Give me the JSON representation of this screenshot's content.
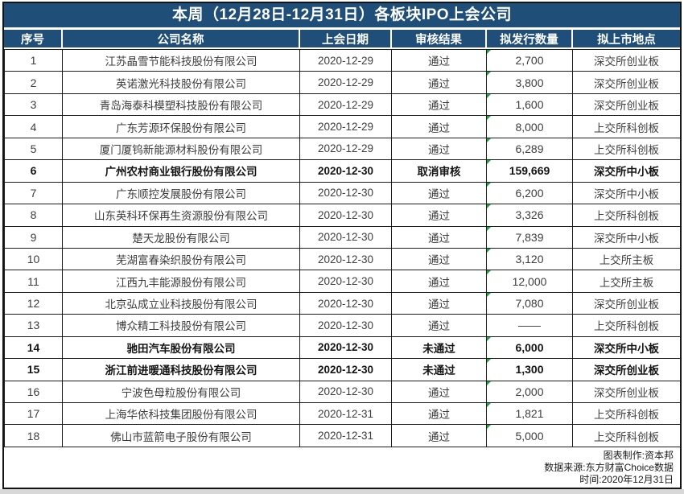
{
  "chart_data": {
    "type": "table",
    "title": "本周（12月28日-12月31日）各板块IPO上会公司",
    "columns": [
      "序号",
      "公司名称",
      "上会日期",
      "审核结果",
      "拟发行数量",
      "拟上市地点"
    ],
    "rows": [
      {
        "no": "1",
        "company": "江苏晶雪节能科技股份有限公司",
        "date": "2020-12-29",
        "result": "通过",
        "quantity": "2,700",
        "location": "深交所创业板",
        "bold": false,
        "flag": true
      },
      {
        "no": "2",
        "company": "英诺激光科技股份有限公司",
        "date": "2020-12-29",
        "result": "通过",
        "quantity": "3,800",
        "location": "深交所创业板",
        "bold": false,
        "flag": true
      },
      {
        "no": "3",
        "company": "青岛海泰科模塑科技股份有限公司",
        "date": "2020-12-29",
        "result": "通过",
        "quantity": "1,600",
        "location": "深交所创业板",
        "bold": false,
        "flag": true
      },
      {
        "no": "4",
        "company": "广东芳源环保股份有限公司",
        "date": "2020-12-29",
        "result": "通过",
        "quantity": "8,000",
        "location": "上交所科创板",
        "bold": false,
        "flag": true
      },
      {
        "no": "5",
        "company": "厦门厦钨新能源材料股份有限公司",
        "date": "2020-12-29",
        "result": "通过",
        "quantity": "6,289",
        "location": "上交所科创板",
        "bold": false,
        "flag": true
      },
      {
        "no": "6",
        "company": "广州农村商业银行股份有限公司",
        "date": "2020-12-30",
        "result": "取消审核",
        "quantity": "159,669",
        "location": "深交所中小板",
        "bold": true,
        "flag": true
      },
      {
        "no": "7",
        "company": "广东顺控发展股份有限公司",
        "date": "2020-12-30",
        "result": "通过",
        "quantity": "6,200",
        "location": "深交所中小板",
        "bold": false,
        "flag": true
      },
      {
        "no": "8",
        "company": "山东英科环保再生资源股份有限公司",
        "date": "2020-12-30",
        "result": "通过",
        "quantity": "3,326",
        "location": "上交所科创板",
        "bold": false,
        "flag": true
      },
      {
        "no": "9",
        "company": "楚天龙股份有限公司",
        "date": "2020-12-30",
        "result": "通过",
        "quantity": "7,839",
        "location": "深交所中小板",
        "bold": false,
        "flag": true
      },
      {
        "no": "10",
        "company": "芜湖富春染织股份有限公司",
        "date": "2020-12-30",
        "result": "通过",
        "quantity": "3,120",
        "location": "上交所主板",
        "bold": false,
        "flag": true
      },
      {
        "no": "11",
        "company": "江西九丰能源股份有限公司",
        "date": "2020-12-30",
        "result": "通过",
        "quantity": "12,000",
        "location": "上交所主板",
        "bold": false,
        "flag": true
      },
      {
        "no": "12",
        "company": "北京弘成立业科技股份有限公司",
        "date": "2020-12-30",
        "result": "通过",
        "quantity": "7,080",
        "location": "深交所创业板",
        "bold": false,
        "flag": true
      },
      {
        "no": "13",
        "company": "博众精工科技股份有限公司",
        "date": "2020-12-30",
        "result": "通过",
        "quantity": "——",
        "location": "上交所科创板",
        "bold": false,
        "flag": false
      },
      {
        "no": "14",
        "company": "驰田汽车股份有限公司",
        "date": "2020-12-30",
        "result": "未通过",
        "quantity": "6,000",
        "location": "深交所中小板",
        "bold": true,
        "flag": true
      },
      {
        "no": "15",
        "company": "浙江前进暖通科技股份有限公司",
        "date": "2020-12-30",
        "result": "未通过",
        "quantity": "1,300",
        "location": "深交所创业板",
        "bold": true,
        "flag": true
      },
      {
        "no": "16",
        "company": "宁波色母粒股份有限公司",
        "date": "2020-12-30",
        "result": "通过",
        "quantity": "2,000",
        "location": "深交所创业板",
        "bold": false,
        "flag": true
      },
      {
        "no": "17",
        "company": "上海华依科技集团股份有限公司",
        "date": "2020-12-31",
        "result": "通过",
        "quantity": "1,821",
        "location": "上交所科创板",
        "bold": false,
        "flag": true
      },
      {
        "no": "18",
        "company": "佛山市蓝箭电子股份有限公司",
        "date": "2020-12-31",
        "result": "通过",
        "quantity": "5,000",
        "location": "上交所科创板",
        "bold": false,
        "flag": true
      }
    ],
    "layout_hints": {
      "grid": true,
      "bold_row_numbers": [
        6,
        14,
        15
      ],
      "corner_flag_icon": "green-triangle"
    }
  },
  "footer": {
    "made_by": "图表制作:资本邦",
    "source": "数据来源:东方财富Choice数据",
    "time": "时间:2020年12月31日"
  },
  "colors": {
    "header_bg": "#1F4E79",
    "header_text": "#FFFFFF",
    "body_text": "#3D3D3D",
    "bold_text": "#141414",
    "grid_border": "#1C1C1C",
    "flag_green": "#1FA33C"
  }
}
